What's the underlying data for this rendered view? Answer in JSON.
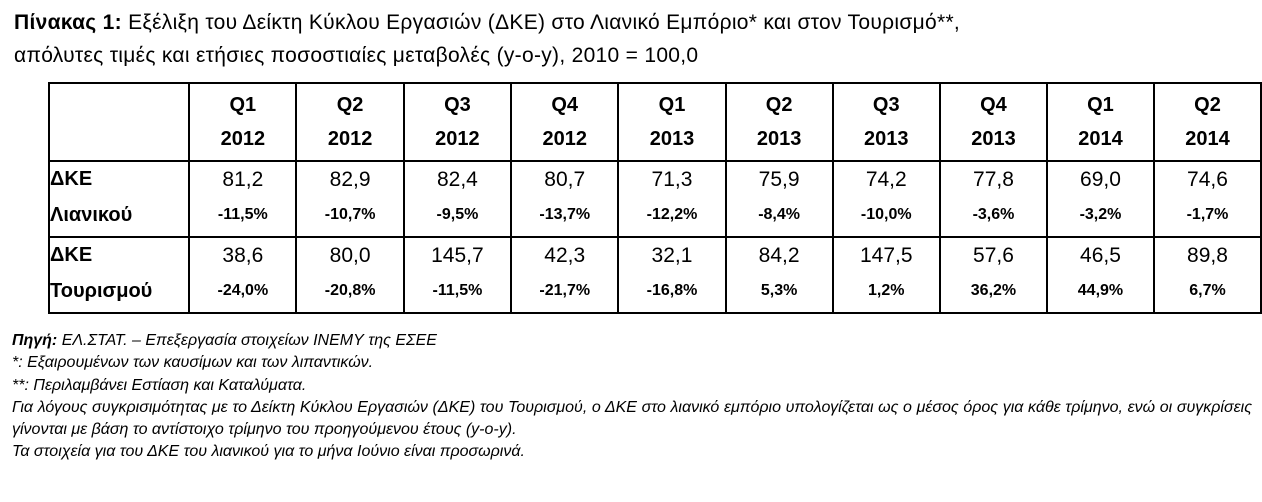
{
  "title": {
    "label": "Πίνακας 1:",
    "text": "Εξέλιξη του Δείκτη Κύκλου Εργασιών (ΔΚΕ) στο Λιανικό Εμπόριο* και στον Τουρισμό**,",
    "line2": "απόλυτες τιμές και ετήσιες ποσοστιαίες μεταβολές (y-o-y), 2010 = 100,0"
  },
  "table": {
    "headers": [
      {
        "q": "Q1",
        "y": "2012"
      },
      {
        "q": "Q2",
        "y": "2012"
      },
      {
        "q": "Q3",
        "y": "2012"
      },
      {
        "q": "Q4",
        "y": "2012"
      },
      {
        "q": "Q1",
        "y": "2013"
      },
      {
        "q": "Q2",
        "y": "2013"
      },
      {
        "q": "Q3",
        "y": "2013"
      },
      {
        "q": "Q4",
        "y": "2013"
      },
      {
        "q": "Q1",
        "y": "2014"
      },
      {
        "q": "Q2",
        "y": "2014"
      }
    ],
    "rows": [
      {
        "label1": "ΔΚΕ",
        "label2": "Λιανικού",
        "values": [
          "81,2",
          "82,9",
          "82,4",
          "80,7",
          "71,3",
          "75,9",
          "74,2",
          "77,8",
          "69,0",
          "74,6"
        ],
        "changes": [
          "-11,5%",
          "-10,7%",
          "-9,5%",
          "-13,7%",
          "-12,2%",
          "-8,4%",
          "-10,0%",
          "-3,6%",
          "-3,2%",
          "-1,7%"
        ]
      },
      {
        "label1": "ΔΚΕ",
        "label2": "Τουρισμού",
        "values": [
          "38,6",
          "80,0",
          "145,7",
          "42,3",
          "32,1",
          "84,2",
          "147,5",
          "57,6",
          "46,5",
          "89,8"
        ],
        "changes": [
          "-24,0%",
          "-20,8%",
          "-11,5%",
          "-21,7%",
          "-16,8%",
          "5,3%",
          "1,2%",
          "36,2%",
          "44,9%",
          "6,7%"
        ]
      }
    ]
  },
  "notes": {
    "source_label": "Πηγή:",
    "source_text": " ΕΛ.ΣΤΑΤ. – Επεξεργασία στοιχείων ΙΝΕΜΥ της ΕΣΕΕ",
    "note1": "*: Εξαιρουμένων των καυσίμων και των λιπαντικών.",
    "note2": "**: Περιλαμβάνει Εστίαση και Καταλύματα.",
    "note3": "Για λόγους συγκρισιμότητας με το Δείκτη Κύκλου Εργασιών (ΔΚΕ) του Τουρισμού, ο ΔΚΕ στο λιανικό εμπόριο υπολογίζεται ως ο μέσος όρος για κάθε τρίμηνο, ενώ οι συγκρίσεις γίνονται με βάση το αντίστοιχο τρίμηνο του προηγούμενου έτους (y-o-y).",
    "note4": "Τα στοιχεία για του ΔΚΕ του λιανικού για το μήνα Ιούνιο είναι προσωρινά."
  }
}
